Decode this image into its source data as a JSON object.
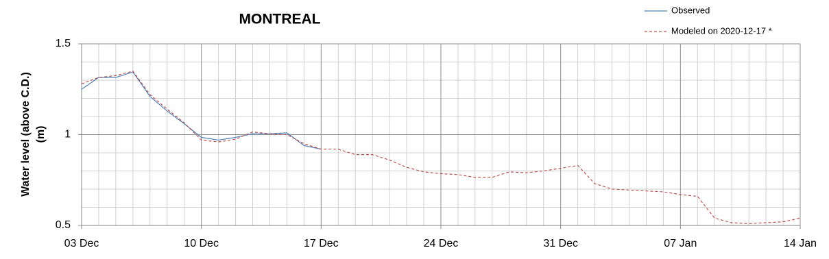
{
  "chart_data": {
    "type": "line",
    "title": "MONTREAL",
    "ylabel": [
      "Water level (above C.D.)",
      "(m)"
    ],
    "categories": [
      "03 Dec",
      null,
      null,
      null,
      null,
      null,
      null,
      "10 Dec",
      null,
      null,
      null,
      null,
      null,
      null,
      "17 Dec",
      null,
      null,
      null,
      null,
      null,
      null,
      "24 Dec",
      null,
      null,
      null,
      null,
      null,
      null,
      "31 Dec",
      null,
      null,
      null,
      null,
      null,
      null,
      "07 Jan",
      null,
      null,
      null,
      null,
      null,
      null,
      "14 Jan"
    ],
    "series": [
      {
        "name": "Observed",
        "color": "#4f81bd",
        "dash": false,
        "values": [
          1.25,
          1.315,
          1.315,
          1.345,
          1.21,
          1.13,
          1.06,
          0.985,
          0.97,
          0.985,
          1.005,
          1.005,
          1.01,
          0.94,
          0.92,
          null,
          null,
          null,
          null,
          null,
          null,
          null,
          null,
          null,
          null,
          null,
          null,
          null,
          null,
          null,
          null,
          null,
          null,
          null,
          null,
          null,
          null,
          null,
          null,
          null,
          null,
          null,
          null
        ]
      },
      {
        "name": "Modeled on 2020-12-17 *",
        "color": "#c0504d",
        "dash": true,
        "values": [
          1.28,
          1.315,
          1.325,
          1.35,
          1.22,
          1.14,
          1.065,
          0.97,
          0.96,
          0.975,
          1.015,
          1.005,
          1.0,
          0.95,
          0.92,
          0.92,
          0.89,
          0.89,
          0.86,
          0.82,
          0.795,
          0.785,
          0.78,
          0.765,
          0.765,
          0.795,
          0.79,
          0.8,
          0.815,
          0.83,
          0.73,
          0.7,
          0.695,
          0.69,
          0.685,
          0.67,
          0.66,
          0.54,
          0.515,
          0.51,
          0.515,
          0.52,
          0.54
        ]
      }
    ],
    "ylim": [
      0.5,
      1.5
    ],
    "yticks": [
      0.5,
      1,
      1.5
    ],
    "y_minor_ticks": [
      0.6,
      0.7,
      0.8,
      0.9,
      1.1,
      1.2,
      1.3,
      1.4
    ],
    "grid": true,
    "legend": "top-right"
  }
}
